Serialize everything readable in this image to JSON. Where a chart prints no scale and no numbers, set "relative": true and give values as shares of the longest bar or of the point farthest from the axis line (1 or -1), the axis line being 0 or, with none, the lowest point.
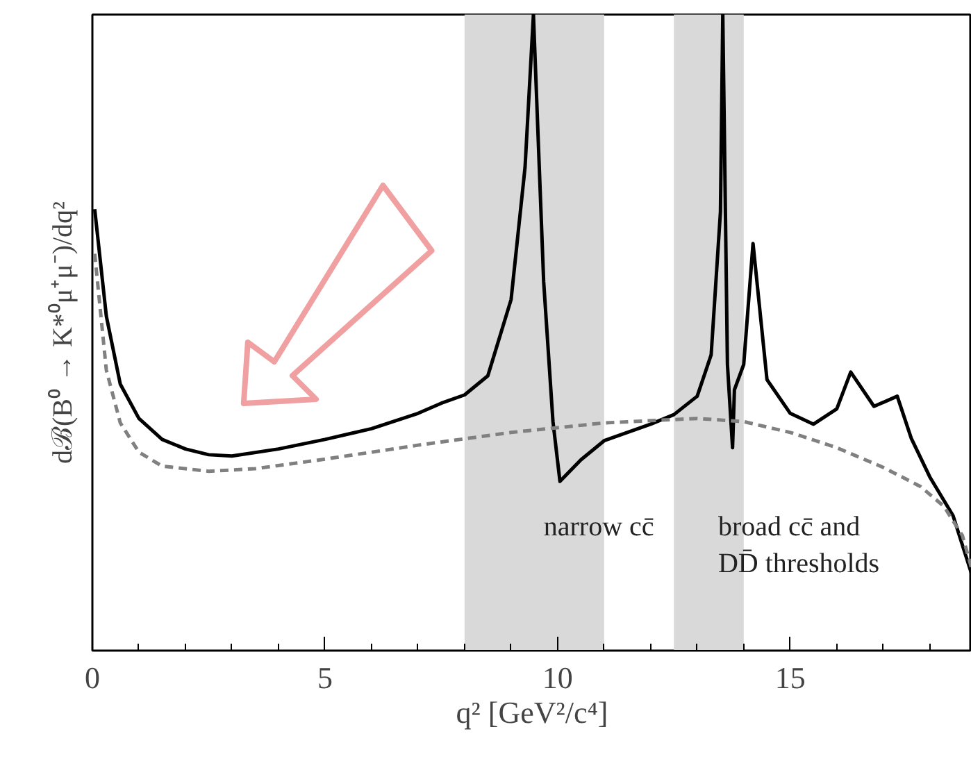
{
  "chart_data": {
    "type": "line",
    "relative": true,
    "xlabel": "q² [GeV²/c⁴]",
    "ylabel": "dℬ(B⁰ → K*⁰μ⁺μ⁻)/dq²",
    "xlim": [
      0,
      18.9
    ],
    "xticks": [
      0,
      5,
      10,
      15
    ],
    "grid": false,
    "series": [
      {
        "color": "#000000",
        "line_style": "solid",
        "x": [
          0.05,
          0.3,
          0.6,
          1.0,
          1.5,
          2.0,
          2.5,
          3.0,
          4.0,
          5.0,
          6.0,
          7.0,
          7.5,
          8.0,
          8.5,
          9.0,
          9.3,
          9.48,
          9.7,
          9.9,
          10.05,
          10.5,
          11.0,
          12.0,
          12.5,
          13.0,
          13.3,
          13.5,
          13.55,
          13.65,
          13.76,
          13.8,
          14.0,
          14.2,
          14.5,
          15.0,
          15.5,
          16.0,
          16.3,
          16.8,
          17.3,
          17.6,
          18.0,
          18.5,
          18.9
        ],
        "values": [
          0.694,
          0.526,
          0.419,
          0.365,
          0.332,
          0.317,
          0.308,
          0.306,
          0.317,
          0.332,
          0.349,
          0.373,
          0.389,
          0.402,
          0.432,
          0.552,
          0.76,
          1.0,
          0.58,
          0.36,
          0.266,
          0.3,
          0.33,
          0.356,
          0.371,
          0.4,
          0.465,
          0.69,
          1.0,
          0.45,
          0.319,
          0.41,
          0.45,
          0.64,
          0.426,
          0.373,
          0.356,
          0.38,
          0.438,
          0.384,
          0.4,
          0.334,
          0.273,
          0.212,
          0.12
        ]
      },
      {
        "color": "#808080",
        "line_style": "dashed",
        "x": [
          0.05,
          0.3,
          0.6,
          1.0,
          1.5,
          2.5,
          3.5,
          5.0,
          7.0,
          9.0,
          11.0,
          13.0,
          14.0,
          15.0,
          16.0,
          17.0,
          17.8,
          18.3,
          18.7,
          18.9
        ],
        "values": [
          0.624,
          0.441,
          0.358,
          0.312,
          0.29,
          0.282,
          0.286,
          0.301,
          0.323,
          0.343,
          0.358,
          0.365,
          0.36,
          0.343,
          0.319,
          0.288,
          0.258,
          0.227,
          0.181,
          0.129
        ]
      }
    ],
    "bands": [
      {
        "axis": "x",
        "from": 8,
        "to": 11,
        "color": "#d9d9d9",
        "label": "narrow cc̄"
      },
      {
        "axis": "x",
        "from": 12.5,
        "to": 14,
        "color": "#d9d9d9",
        "label": "broad cc̄ and\nDD̄ thresholds"
      }
    ]
  }
}
